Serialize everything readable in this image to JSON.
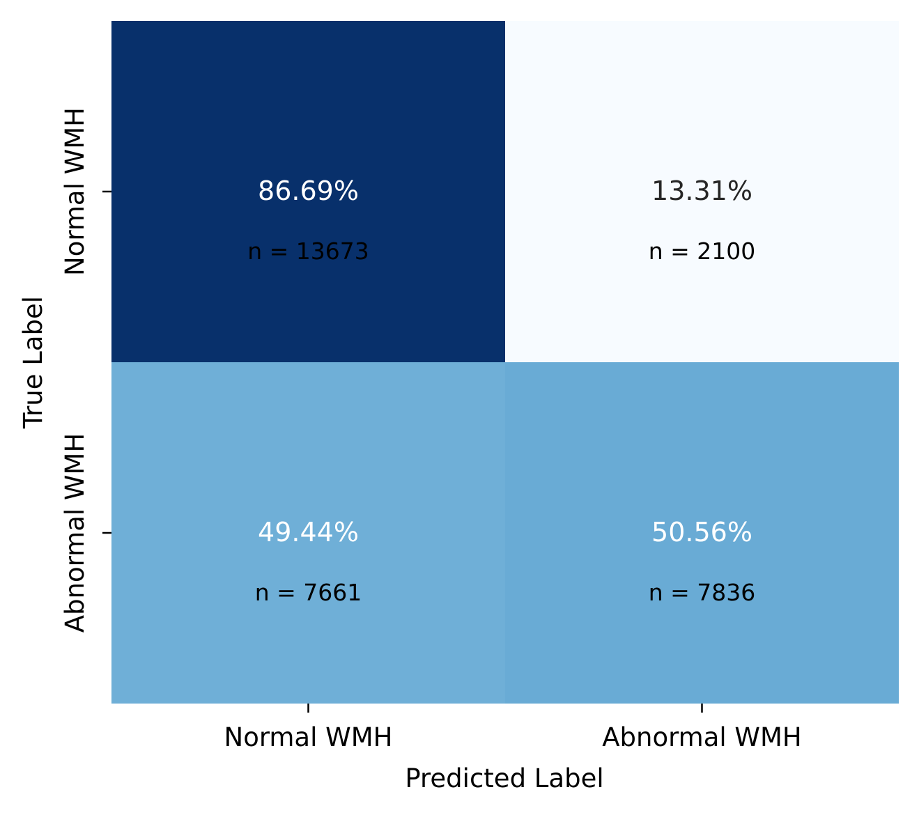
{
  "chart_data": {
    "type": "heatmap",
    "xlabel": "Predicted Label",
    "ylabel": "True Label",
    "x_categories": [
      "Normal WMH",
      "Abnormal WMH"
    ],
    "y_categories": [
      "Normal WMH",
      "Abnormal WMH"
    ],
    "values": [
      [
        86.69,
        13.31
      ],
      [
        49.44,
        50.56
      ]
    ],
    "percent_labels": [
      [
        "86.69%",
        "13.31%"
      ],
      [
        "49.44%",
        "50.56%"
      ]
    ],
    "count_labels": [
      [
        "n = 13673",
        "n = 2100"
      ],
      [
        "n = 7661",
        "n = 7836"
      ]
    ],
    "counts": [
      [
        13673,
        2100
      ],
      [
        7661,
        7836
      ]
    ],
    "colormap": "Blues",
    "cell_colors": [
      [
        "#08306b",
        "#f7fbff"
      ],
      [
        "#6fafd7",
        "#69abd5"
      ]
    ],
    "percent_text_colors": [
      [
        "#ffffff",
        "#262626"
      ],
      [
        "#ffffff",
        "#ffffff"
      ]
    ],
    "count_text_color": "#000000",
    "colorbar": false,
    "grid": false
  }
}
